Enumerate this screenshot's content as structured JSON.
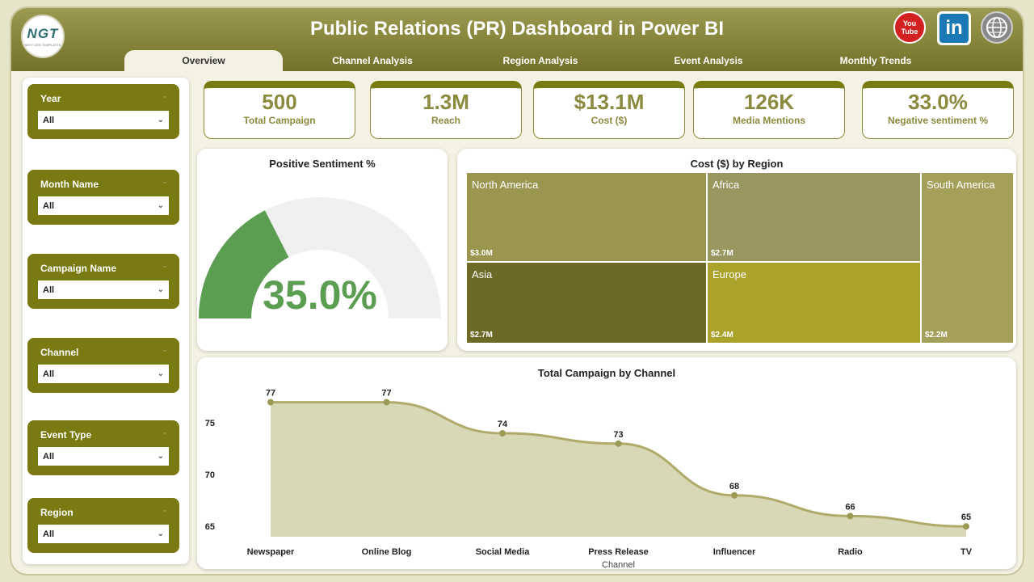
{
  "header": {
    "title": "Public Relations (PR) Dashboard in Power BI",
    "logo_text": "NGT",
    "logo_subtext": "NEXT GEN TEMPLATES",
    "youtube_top": "You",
    "youtube_bottom": "Tube",
    "linkedin": "in"
  },
  "tabs": [
    {
      "label": "Overview"
    },
    {
      "label": "Channel Analysis"
    },
    {
      "label": "Region Analysis"
    },
    {
      "label": "Event Analysis"
    },
    {
      "label": "Monthly Trends"
    }
  ],
  "slicers": [
    {
      "label": "Year",
      "value": "All"
    },
    {
      "label": "Month Name",
      "value": "All"
    },
    {
      "label": "Campaign Name",
      "value": "All"
    },
    {
      "label": "Channel",
      "value": "All"
    },
    {
      "label": "Event Type",
      "value": "All"
    },
    {
      "label": "Region",
      "value": "All"
    }
  ],
  "kpis": [
    {
      "value": "500",
      "label": "Total Campaign"
    },
    {
      "value": "1.3M",
      "label": "Reach"
    },
    {
      "value": "$13.1M",
      "label": "Cost ($)"
    },
    {
      "value": "126K",
      "label": "Media Mentions"
    },
    {
      "value": "33.0%",
      "label": "Negative sentiment %"
    }
  ],
  "gauge": {
    "title": "Positive Sentiment %",
    "value_label": "35.0%",
    "value": 0.35
  },
  "treemap": {
    "title": "Cost ($) by Region",
    "cells": [
      {
        "name": "North America",
        "value": "$3.0M"
      },
      {
        "name": "Africa",
        "value": "$2.7M"
      },
      {
        "name": "South America",
        "value": "$2.2M"
      },
      {
        "name": "Asia",
        "value": "$2.7M"
      },
      {
        "name": "Europe",
        "value": "$2.4M"
      }
    ]
  },
  "colors": {
    "accent": "#7a7a12",
    "header_top": "#9c9a50",
    "header_bottom": "#74712a",
    "kpi_text": "#8b8a3e",
    "gauge_fill": "#5b9e52",
    "gauge_track": "#f1f0f0",
    "area_fill": "#d8d7b6",
    "line": "#b0ab6a"
  },
  "chart_data": {
    "type": "area",
    "title": "Total Campaign by Channel",
    "xlabel": "Channel",
    "ylabel": "",
    "categories": [
      "Newspaper",
      "Online Blog",
      "Social Media",
      "Press Release",
      "Influencer",
      "Radio",
      "TV"
    ],
    "values": [
      77,
      77,
      74,
      73,
      68,
      66,
      65
    ],
    "yticks": [
      65,
      70,
      75
    ],
    "ylim": [
      64,
      79
    ],
    "grid": false,
    "data_labels": true
  }
}
